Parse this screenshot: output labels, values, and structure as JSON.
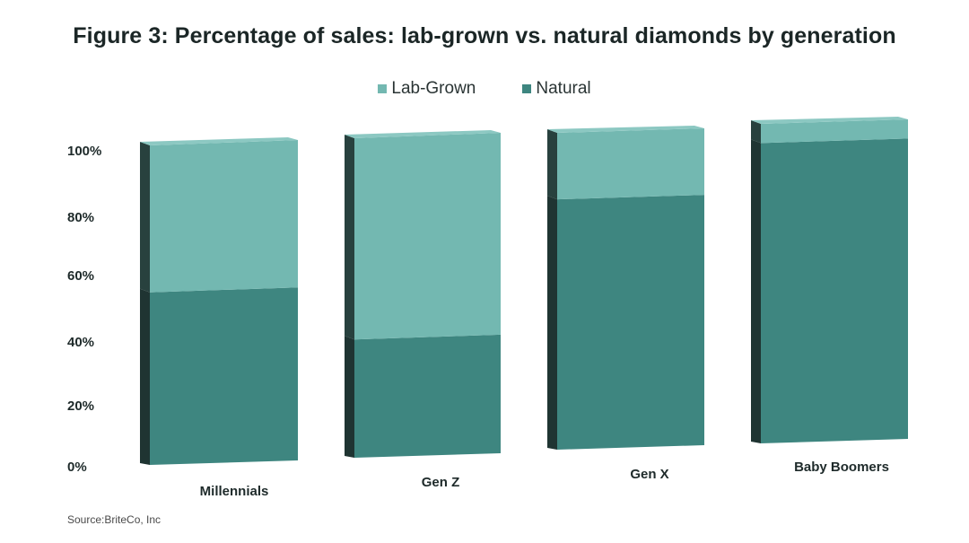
{
  "chart_data": {
    "type": "bar",
    "stacked": true,
    "title": "Figure 3: Percentage of sales: lab-grown vs. natural diamonds by generation",
    "categories": [
      "Millennials",
      "Gen Z",
      "Gen X",
      "Baby Boomers"
    ],
    "series": [
      {
        "name": "Natural",
        "values": [
          54,
          37,
          79,
          94
        ]
      },
      {
        "name": "Lab-Grown",
        "values": [
          46,
          63,
          21,
          6
        ]
      }
    ],
    "y_ticks": [
      "0%",
      "20%",
      "40%",
      "60%",
      "80%",
      "100%"
    ],
    "ylim": [
      0,
      100
    ],
    "legend_position": "top-center",
    "grid": false
  },
  "colors": {
    "natural": "#3e8680",
    "lab_grown": "#73b8b1",
    "natural_side": "#1f3432",
    "lab_grown_side": "#28413e",
    "top_face": "#8cc8c2"
  },
  "legend": [
    {
      "label": "Lab-Grown",
      "color": "#73b8b1"
    },
    {
      "label": "Natural",
      "color": "#3e8680"
    }
  ],
  "source": "Source:BriteCo, Inc"
}
